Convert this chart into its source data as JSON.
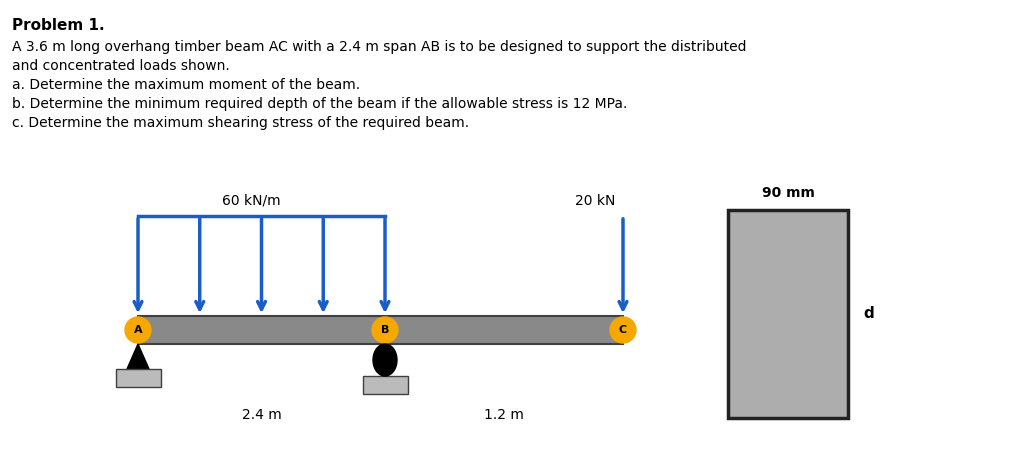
{
  "title": "Problem 1.",
  "description_lines": [
    "A 3.6 m long overhang timber beam AC with a 2.4 m span AB is to be designed to support the distributed",
    "and concentrated loads shown.",
    "a. Determine the maximum moment of the beam.",
    "b. Determine the minimum required depth of the beam if the allowable stress is 12 MPa.",
    "c. Determine the maximum shearing stress of the required beam."
  ],
  "beam_color": "#898989",
  "dist_load_color": "#1A5DC8",
  "label_color": "#F5A800",
  "rect_color": "#ADADAD",
  "rect_border": "#222222",
  "beam_color_border": "#404040",
  "support_color": "#BBBBBB",
  "bg_color": "#FFFFFF",
  "dist_load_label": "60 kN/m",
  "conc_load_label": "20 kN",
  "span_AB_label": "2.4 m",
  "span_BC_label": "1.2 m",
  "dim_90mm": "90 mm",
  "dim_d": "d"
}
